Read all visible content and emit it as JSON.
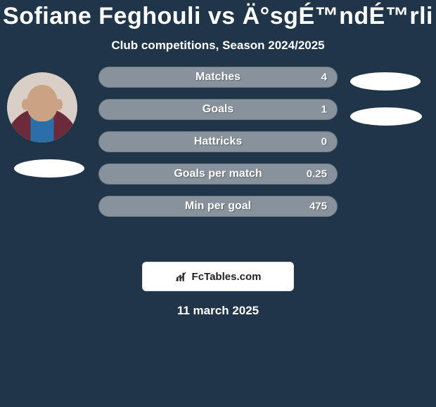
{
  "background_color": "#203548",
  "text_color": "#ffffff",
  "title": "Sofiane Feghouli vs Ä°sgÉ™ndÉ™rli",
  "subtitle": "Club competitions, Season 2024/2025",
  "bar_bg": "#87929d",
  "bar_border": "#6d7a86",
  "stats": [
    {
      "label": "Matches",
      "value": "4"
    },
    {
      "label": "Goals",
      "value": "1"
    },
    {
      "label": "Hattricks",
      "value": "0"
    },
    {
      "label": "Goals per match",
      "value": "0.25"
    },
    {
      "label": "Min per goal",
      "value": "475"
    }
  ],
  "attribution": "FcTables.com",
  "date": "11 march 2025"
}
